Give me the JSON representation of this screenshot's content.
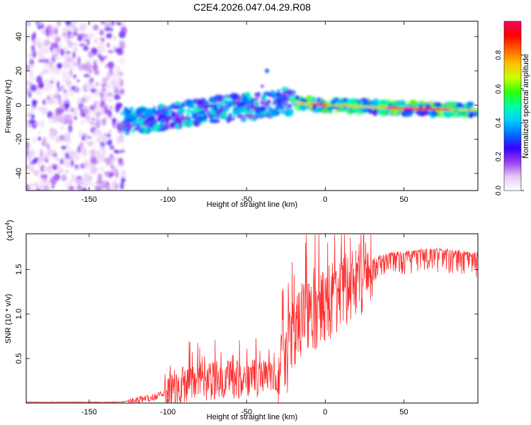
{
  "title": "C2E4.2026.047.04.29.R08",
  "chart_data": [
    {
      "type": "heatmap",
      "panel": "spectrogram",
      "xlabel": "Height of straight line (km)",
      "ylabel": "Frequency (Hz)",
      "xlim": [
        -190,
        97
      ],
      "ylim": [
        -50,
        49
      ],
      "xticks": [
        -150,
        -100,
        -50,
        0,
        50
      ],
      "xtick_labels": [
        "-150",
        "-100",
        "-50",
        "0",
        "50"
      ],
      "yticks": [
        -40,
        -20,
        0,
        20,
        40
      ],
      "ytick_labels": [
        "-40",
        "-20",
        "0",
        "20",
        "40"
      ],
      "noise_region_x": [
        -190,
        -128
      ],
      "signal_band_center_hz": [
        {
          "x": -128,
          "y": -10
        },
        {
          "x": -100,
          "y": -7
        },
        {
          "x": -75,
          "y": -3
        },
        {
          "x": -50,
          "y": -1
        },
        {
          "x": -25,
          "y": 2
        },
        {
          "x": 0,
          "y": 0
        },
        {
          "x": 25,
          "y": -1
        },
        {
          "x": 50,
          "y": -2
        },
        {
          "x": 97,
          "y": -3
        }
      ],
      "colorbar": {
        "label": "Normalized spectral amplitude",
        "range": [
          0,
          1
        ],
        "ticks": [
          0.0,
          0.2,
          0.4,
          0.6,
          0.8
        ],
        "tick_labels": [
          "0.0",
          "0.2",
          "0.4",
          "0.6",
          "0.8"
        ],
        "colors": [
          "#ffffff",
          "#e4c8f4",
          "#9a3ff0",
          "#3a00ff",
          "#0070ff",
          "#00d0ff",
          "#00ffa0",
          "#30ff00",
          "#c8ff00",
          "#ffc000",
          "#ff6000",
          "#ff0000",
          "#ff0060"
        ]
      },
      "line_color": "#ff0000"
    },
    {
      "type": "line",
      "panel": "snr",
      "xlabel": "Height of straight line (km)",
      "ylabel": "SNR (10 * v/v)",
      "scale_label": "(x10",
      "scale_exponent": "4",
      "scale_close": ")",
      "xlim": [
        -190,
        97
      ],
      "ylim": [
        0,
        1.9
      ],
      "xticks": [
        -150,
        -100,
        -50,
        0,
        50
      ],
      "xtick_labels": [
        "-150",
        "-100",
        "-50",
        "0",
        "50"
      ],
      "yticks": [
        0.5,
        1.0,
        1.5
      ],
      "ytick_labels": [
        "0.5",
        "1.0",
        "1.5"
      ],
      "series": [
        {
          "name": "SNR",
          "color": "#ff3030",
          "x": [
            -190,
            -130,
            -122,
            -110,
            -100,
            -90,
            -80,
            -70,
            -60,
            -50,
            -40,
            -30,
            -25,
            -20,
            -15,
            -10,
            -5,
            0,
            5,
            10,
            15,
            20,
            25,
            30,
            35,
            40,
            50,
            60,
            70,
            80,
            90,
            97
          ],
          "y": [
            0.01,
            0.01,
            0.03,
            0.06,
            0.12,
            0.2,
            0.24,
            0.26,
            0.26,
            0.26,
            0.28,
            0.3,
            0.45,
            0.7,
            0.9,
            1.0,
            1.05,
            1.1,
            1.15,
            1.2,
            1.25,
            1.35,
            1.5,
            1.62,
            1.66,
            1.68,
            1.7,
            1.72,
            1.73,
            1.72,
            1.7,
            1.68
          ]
        }
      ]
    }
  ]
}
